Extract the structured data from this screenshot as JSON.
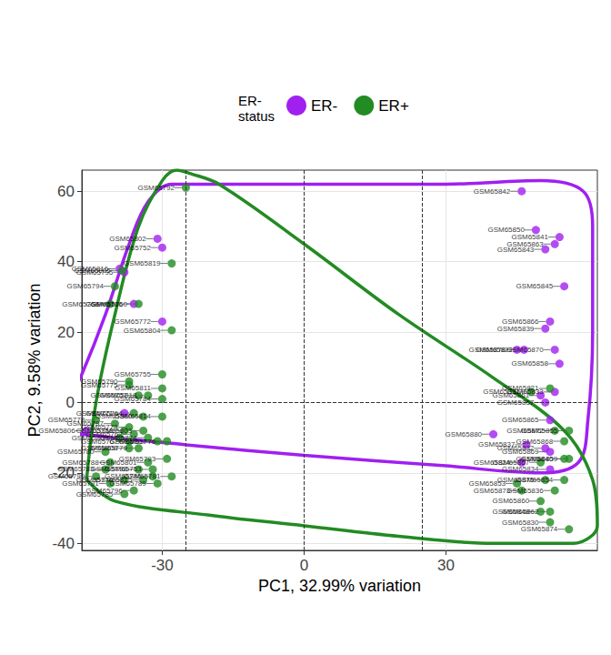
{
  "chart_data": {
    "type": "scatter",
    "x_label": "PC1, 32.99% variation",
    "y_label": "PC2, 9.58% variation",
    "legend_title": "ER-\nstatus",
    "legend": "top",
    "grid": true,
    "xlim": [
      -47,
      62
    ],
    "xticks": [
      -30,
      0,
      30
    ],
    "ylim": [
      -42,
      66
    ],
    "yticks": [
      -40,
      -20,
      0,
      20,
      40,
      60
    ],
    "vlines": [
      -25,
      0,
      25
    ],
    "hlines": [
      0
    ],
    "series": [
      {
        "name": "ER-",
        "color": "#a020f0",
        "marker": "circle",
        "labels": [
          "GSM65802",
          "GSM65752",
          "GSM65816",
          "GSM65795",
          "GSM65766",
          "GSM65772",
          "GSM65771",
          "GSM65806",
          "GSM65842",
          "GSM65850",
          "GSM65841",
          "GSM65863",
          "GSM65843",
          "GSM65845",
          "GSM65866",
          "GSM65839",
          "GSM65878",
          "GSM65822",
          "GSM65870",
          "GSM65858",
          "GSM65861",
          "GSM65833",
          "GSM65857",
          "GSM65865",
          "GSM65880",
          "GSM65837",
          "GSM65832",
          "GSM65869",
          "GSM65824",
          "GSM65834"
        ],
        "x": [
          -31,
          -30,
          -39,
          -38,
          -36,
          -30,
          -38,
          -46,
          46,
          49,
          54,
          53,
          51,
          55,
          52,
          51,
          45,
          46.5,
          53,
          54,
          50,
          53,
          51,
          52,
          40,
          47,
          51,
          52,
          46,
          52
        ],
        "y": [
          46.5,
          44,
          38,
          37,
          28,
          23,
          -3,
          -8,
          60,
          49,
          47,
          45,
          43.5,
          33,
          23,
          21,
          15,
          15,
          15,
          11,
          2,
          3,
          0,
          -5,
          -9,
          -12,
          -13,
          -14,
          -17,
          -19
        ],
        "ellipse_x": [
          -50,
          -47,
          -42,
          -37,
          -33,
          -28,
          -10,
          10,
          30,
          50,
          59,
          61,
          61,
          60,
          58,
          50,
          30,
          0,
          -25,
          -47,
          -50
        ],
        "ellipse_y": [
          0,
          8,
          25,
          45,
          57,
          62,
          62,
          62,
          62,
          63,
          60,
          50,
          20,
          -5,
          -17,
          -20,
          -18,
          -15,
          -12,
          -9,
          -8
        ]
      },
      {
        "name": "ER+",
        "color": "#228b22",
        "marker": "circle",
        "labels": [
          "GSM65792",
          "GSM65819",
          "GSM65805",
          "GSM65794",
          "GSM65760",
          "GSM65768",
          "GSM65804",
          "GSM65755",
          "GSM65790",
          "GSM65775",
          "GSM65811",
          "GSM65757",
          "GSM65818",
          "GSM65784",
          "GSM65764",
          "GSM65800",
          "GSM65814",
          "GSM65778",
          "GSM65797",
          "GSM65773",
          "GSM65803",
          "GSM65758",
          "GSM65762",
          "GSM65809",
          "GSM65767",
          "GSM65776",
          "GSM65774",
          "GSM65807",
          "GSM65779",
          "GSM65808",
          "GSM65780",
          "GSM65801",
          "GSM65793",
          "GSM65781",
          "GSM65753",
          "GSM65798",
          "GSM65786",
          "GSM65815",
          "GSM65789",
          "GSM65770",
          "GSM65788",
          "GSM65783",
          "GSM65791",
          "GSM65785",
          "GSM65799",
          "GSM65796",
          "GSM65831",
          "GSM65821",
          "GSM65872",
          "GSM65855",
          "GSM65868",
          "GSM65867",
          "GSM65859",
          "GSM65840",
          "GSM65854",
          "GSM65853",
          "GSM65873",
          "GSM65875",
          "GSM65860",
          "GSM65836",
          "GSM65848",
          "GSM65862",
          "GSM65874",
          "GSM65830"
        ],
        "x": [
          -25,
          -28,
          -38.5,
          -40,
          -35,
          -41,
          -28,
          -30,
          -37,
          -37,
          -30,
          -35,
          -33,
          -30,
          -36,
          -34,
          -30,
          -44,
          -40,
          -37,
          -34,
          -38,
          -36,
          -39,
          -37,
          -29,
          -33,
          -31,
          -35,
          -37,
          -42,
          -33,
          -29,
          -28,
          -32,
          -35,
          -32,
          -34,
          -31,
          -38,
          -41,
          -42,
          -41,
          -38,
          -44,
          -36,
          48,
          52,
          53,
          56,
          55,
          50,
          56,
          55,
          55,
          45,
          46,
          51,
          50,
          53,
          50,
          52,
          56,
          52
        ],
        "y": [
          61,
          39.5,
          37.5,
          33,
          28,
          28,
          20.5,
          8,
          6,
          5,
          4,
          2,
          2,
          1,
          -3,
          -4,
          -4,
          -5,
          -6,
          -7,
          -8,
          -8,
          -9,
          -10,
          -11,
          -11,
          -10,
          -11,
          -13,
          -13,
          -14,
          -17,
          -16,
          -21,
          -19,
          -19,
          -21,
          -22,
          -23,
          -22,
          -17,
          -19,
          -23,
          -26,
          -21,
          -25,
          3,
          4,
          -8,
          -8,
          -11,
          -17,
          -16,
          -16,
          -22,
          -23,
          -25,
          -22,
          -28,
          -25,
          -31,
          -31,
          -36,
          -34
        ],
        "ellipse_x": [
          -46,
          -44,
          -40,
          -35,
          -30,
          -27,
          -24,
          -18,
          0,
          20,
          40,
          55,
          61,
          62,
          57,
          40,
          20,
          0,
          -20,
          -40,
          -46
        ],
        "ellipse_y": [
          -22,
          0,
          25,
          50,
          63,
          66,
          65,
          62,
          45,
          25,
          7,
          -8,
          -22,
          -35,
          -40,
          -40,
          -38,
          -35,
          -32,
          -28,
          -22
        ]
      }
    ]
  }
}
